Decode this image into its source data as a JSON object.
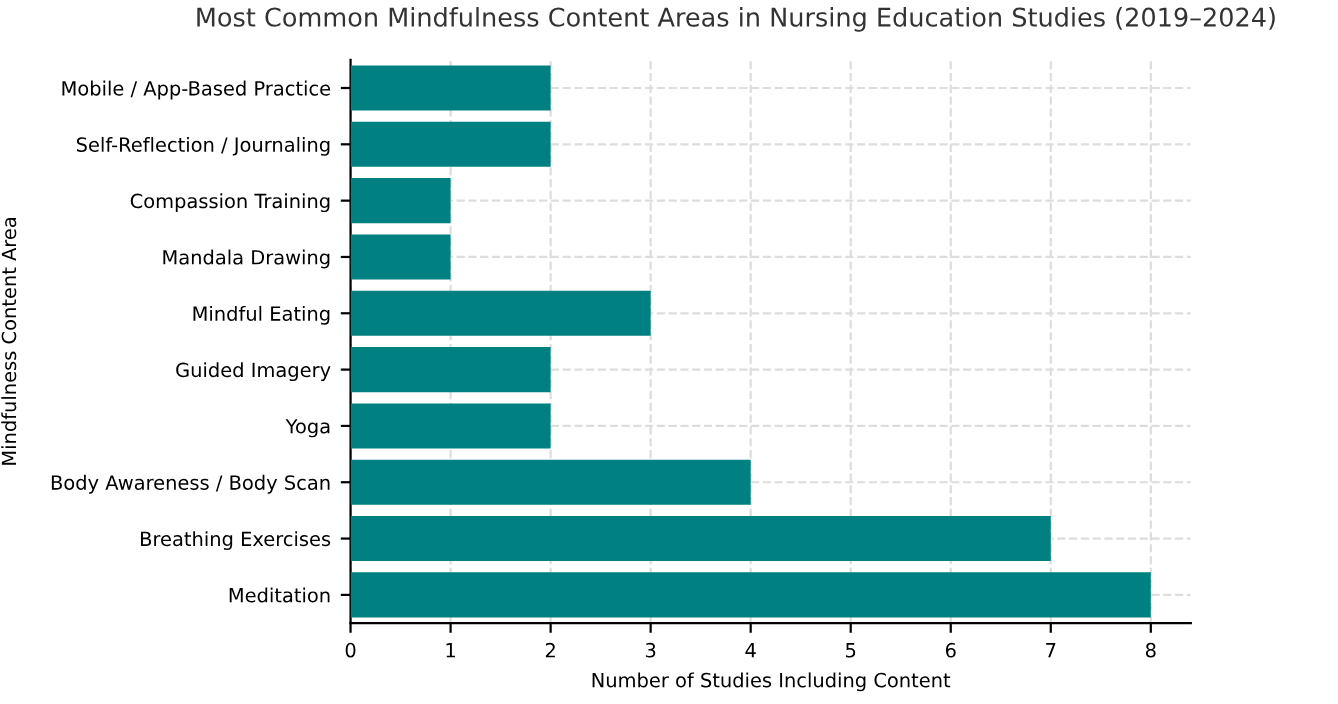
{
  "chart_data": {
    "type": "bar",
    "orientation": "horizontal",
    "title": "Most Common Mindfulness Content Areas in Nursing Education Studies (2019–2024)",
    "xlabel": "Number of Studies Including Content",
    "ylabel": "Mindfulness Content Area",
    "categories": [
      "Mobile / App-Based Practice",
      "Self-Reflection / Journaling",
      "Compassion Training",
      "Mandala Drawing",
      "Mindful Eating",
      "Guided Imagery",
      "Yoga",
      "Body Awareness / Body Scan",
      "Breathing Exercises",
      "Meditation"
    ],
    "values": [
      2,
      2,
      1,
      1,
      3,
      2,
      2,
      4,
      7,
      8
    ],
    "color": "#008080",
    "xlim": [
      0,
      8.4
    ],
    "xticks": [
      0,
      1,
      2,
      3,
      4,
      5,
      6,
      7,
      8
    ],
    "grid": true
  }
}
